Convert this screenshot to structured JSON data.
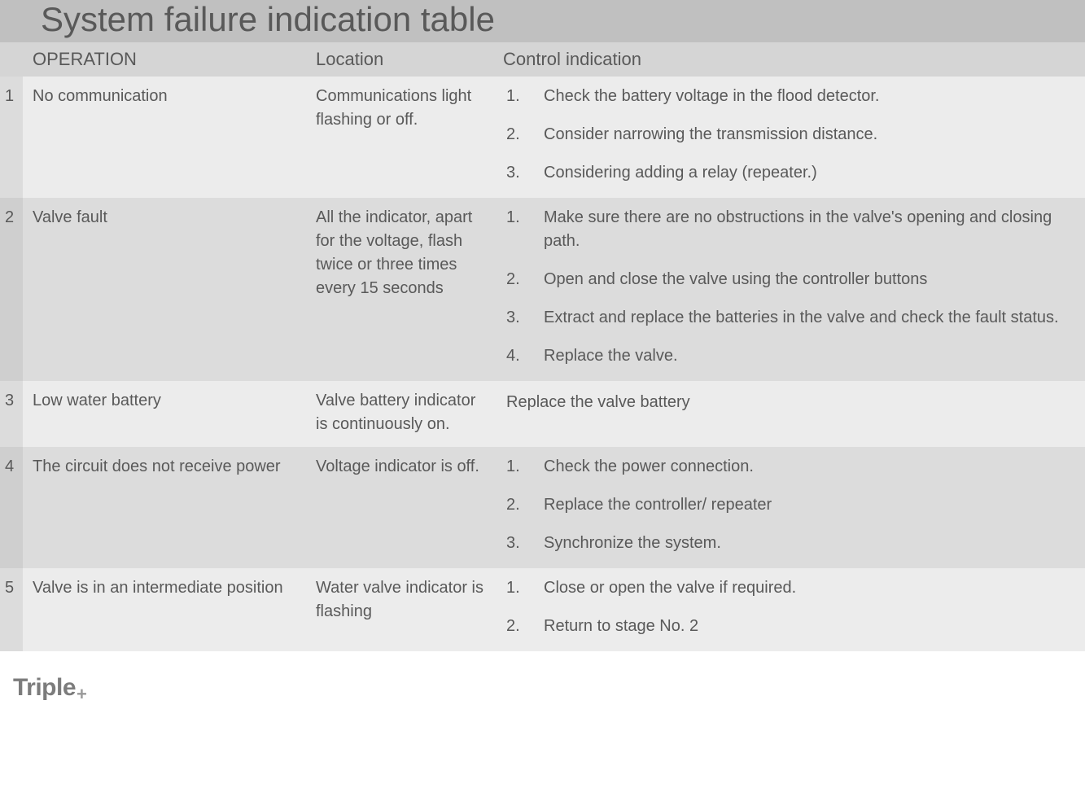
{
  "title": "System failure indication table",
  "columns": {
    "num": "",
    "operation": "OPERATION",
    "location": "Location",
    "control": "Control indication"
  },
  "rows": [
    {
      "num": "1",
      "operation": "No communication",
      "location": "Communications light flashing or off.",
      "control_type": "list",
      "control_steps": [
        "Check the battery voltage in the flood detector.",
        "Consider narrowing the transmission distance.",
        "Considering adding a relay (repeater.)"
      ]
    },
    {
      "num": "2",
      "operation": "Valve fault",
      "location": "All the indicator, apart for the voltage, flash twice or three times every 15 seconds",
      "control_type": "list",
      "control_steps": [
        "Make sure there are no obstructions in the valve's opening and closing path.",
        "Open and close the valve using the controller buttons",
        "Extract and replace the batteries in the valve and check the fault status.",
        "Replace the valve."
      ]
    },
    {
      "num": "3",
      "operation": "Low water battery",
      "location": "Valve battery indicator is continuously on.",
      "control_type": "text",
      "control_text": "Replace the valve battery"
    },
    {
      "num": "4",
      "operation": "The circuit does not receive power",
      "location": "Voltage indicator is off.",
      "control_type": "list",
      "control_steps": [
        "Check the power connection.",
        "Replace the controller/ repeater",
        "Synchronize the system."
      ]
    },
    {
      "num": "5",
      "operation": "Valve is in an intermediate position",
      "location": "Water valve indicator is flashing",
      "control_type": "list",
      "control_steps": [
        "Close or open the valve if required.",
        "Return to stage No. 2"
      ]
    }
  ],
  "logo": {
    "text": "Triple",
    "suffix": "+"
  },
  "colors": {
    "title_bg": "#c0c0c0",
    "header_bg": "#d5d5d5",
    "row_light": "#ececec",
    "row_dark": "#dcdcdc",
    "text": "#595959"
  }
}
